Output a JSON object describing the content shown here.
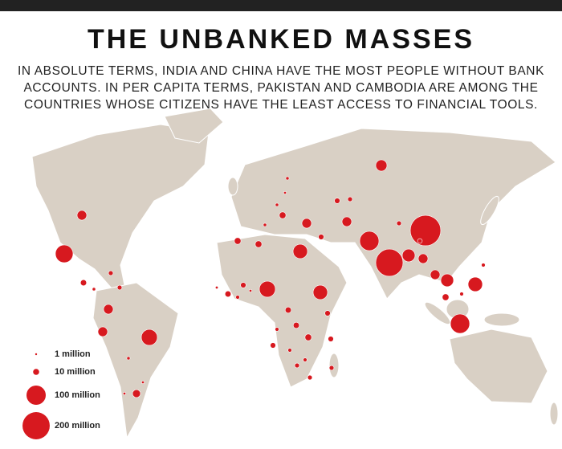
{
  "title": "THE UNBANKED MASSES",
  "subtitle": "IN ABSOLUTE TERMS, INDIA AND CHINA HAVE THE MOST PEOPLE WITHOUT BANK ACCOUNTS. IN PER CAPITA TERMS, PAKISTAN AND CAMBODIA ARE AMONG THE COUNTRIES WHOSE CITIZENS HAVE THE LEAST ACCESS TO FINANCIAL TOOLS.",
  "legend": {
    "items": [
      {
        "value": 1,
        "label": "1 million"
      },
      {
        "value": 10,
        "label": "10 million"
      },
      {
        "value": 100,
        "label": "100 million"
      },
      {
        "value": 200,
        "label": "200 million"
      }
    ]
  },
  "bubbles": [
    34,
    25,
    84,
    250,
    200,
    100,
    44,
    100,
    56,
    44,
    25,
    25,
    69,
    69,
    56,
    56,
    25,
    25,
    25,
    25,
    17,
    12,
    12,
    12,
    8,
    8,
    8,
    6,
    6,
    6,
    10,
    10,
    12,
    4,
    4,
    4,
    6,
    6,
    8,
    8,
    10,
    4,
    2,
    2,
    2,
    3,
    3,
    3,
    6,
    6,
    12,
    4,
    4,
    10,
    3,
    3,
    2,
    2,
    6,
    8
  ]
}
